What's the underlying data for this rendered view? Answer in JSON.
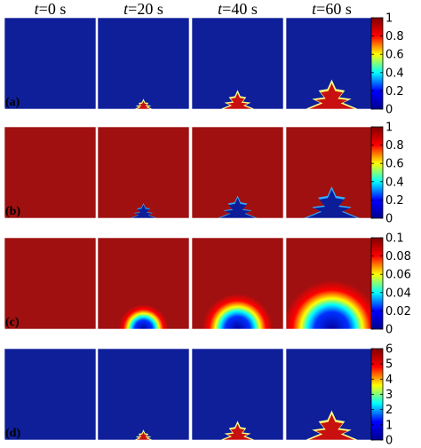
{
  "figure": {
    "columns": [
      {
        "t_var": "t",
        "t_value": "=0 s"
      },
      {
        "t_var": "t",
        "t_value": "=20 s"
      },
      {
        "t_var": "t",
        "t_value": "=40 s"
      },
      {
        "t_var": "t",
        "t_value": "=60 s"
      }
    ],
    "rows": [
      {
        "label": "(a)",
        "kind": "dendrite-field",
        "colorbar_ticks": [
          "1",
          "0.8",
          "0.6",
          "0.4",
          "0.2",
          "0"
        ],
        "colorbar_range": [
          0,
          1
        ]
      },
      {
        "label": "(b)",
        "kind": "inverted-field",
        "colorbar_ticks": [
          "1",
          "0.8",
          "0.6",
          "0.4",
          "0.2",
          "0"
        ],
        "colorbar_range": [
          0,
          1
        ]
      },
      {
        "label": "(c)",
        "kind": "concentration-field",
        "colorbar_ticks": [
          "0.1",
          "0.08",
          "0.06",
          "0.04",
          "0.02",
          "0"
        ],
        "colorbar_range": [
          0,
          0.1
        ]
      },
      {
        "label": "(d)",
        "kind": "dendrite-field",
        "colorbar_ticks": [
          "6",
          "5",
          "4",
          "3",
          "2",
          "1",
          "0"
        ],
        "colorbar_range": [
          0,
          6
        ]
      }
    ],
    "growth_stage": [
      0,
      1,
      2,
      3
    ],
    "colors": {
      "colormap": [
        "#00008f",
        "#0000ff",
        "#00ffff",
        "#ffff00",
        "#ff0000",
        "#800000"
      ],
      "low": "#0f1f9a",
      "high": "#a01010"
    }
  }
}
